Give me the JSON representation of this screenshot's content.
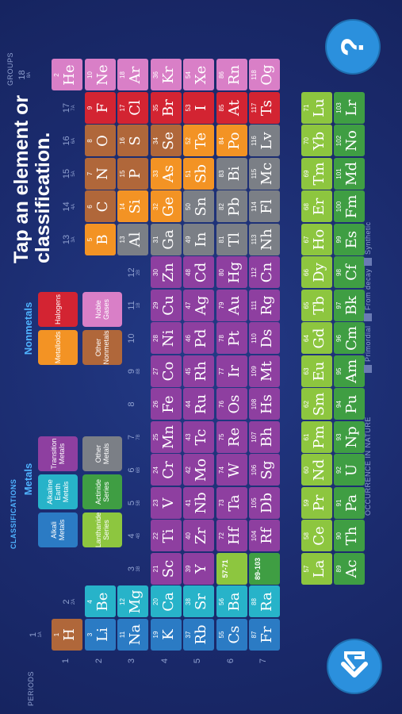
{
  "title": "Tap an element or classification.",
  "groups_label": "GROUPS",
  "periods_label": "PERIODS",
  "help_label": "?",
  "classifications": {
    "title": "CLASSIFICATIONS",
    "metals": {
      "title": "Metals",
      "items": [
        {
          "label": "Alkali Metals",
          "color": "#2b7bc4"
        },
        {
          "label": "Alkaline Earth Metals",
          "color": "#27b3c9"
        },
        {
          "label": "Transition Metals",
          "color": "#8e3fa0"
        },
        {
          "label": "Lanthanide Series",
          "color": "#8dc63f"
        },
        {
          "label": "Actinide Series",
          "color": "#3f9e43"
        },
        {
          "label": "Other Metals",
          "color": "#7b7f86"
        }
      ]
    },
    "nonmetals": {
      "title": "Nonmetals",
      "items": [
        {
          "label": "Metalloids",
          "color": "#f39324"
        },
        {
          "label": "Halogens",
          "color": "#d32432"
        },
        {
          "label": "Other Nonmetals",
          "color": "#b0673a"
        },
        {
          "label": "Noble Gases",
          "color": "#d97fc7"
        }
      ]
    }
  },
  "groups": [
    {
      "number": 1,
      "sub": "1A"
    },
    {
      "number": 2,
      "sub": "2A"
    },
    {
      "number": 3,
      "sub": "3B"
    },
    {
      "number": 4,
      "sub": "4B"
    },
    {
      "number": 5,
      "sub": "5B"
    },
    {
      "number": 6,
      "sub": "6B"
    },
    {
      "number": 7,
      "sub": "7B"
    },
    {
      "number": 8
    },
    {
      "number": 9,
      "sub": "8B"
    },
    {
      "number": 10
    },
    {
      "number": 11,
      "sub": "1B"
    },
    {
      "number": 12,
      "sub": "2B"
    },
    {
      "number": 13,
      "sub": "3A"
    },
    {
      "number": 14,
      "sub": "4A"
    },
    {
      "number": 15,
      "sub": "5A"
    },
    {
      "number": 16,
      "sub": "6A"
    },
    {
      "number": 17,
      "sub": "7A"
    },
    {
      "number": 18,
      "sub": "8A"
    }
  ],
  "periods": [
    1,
    2,
    3,
    4,
    5,
    6,
    7
  ],
  "table": {
    "rows": [
      [
        {
          "number": 1,
          "symbol": "H",
          "color": "#b0673a"
        },
        null,
        null,
        null,
        null,
        null,
        null,
        null,
        null,
        null,
        null,
        null,
        null,
        null,
        null,
        null,
        null,
        {
          "number": 2,
          "symbol": "He",
          "color": "#d97fc7"
        }
      ],
      [
        {
          "number": 3,
          "symbol": "Li",
          "color": "#2b7bc4"
        },
        {
          "number": 4,
          "symbol": "Be",
          "color": "#27b3c9"
        },
        null,
        null,
        null,
        null,
        null,
        null,
        null,
        null,
        null,
        null,
        {
          "number": 5,
          "symbol": "B",
          "color": "#f39324"
        },
        {
          "number": 6,
          "symbol": "C",
          "color": "#b0673a"
        },
        {
          "number": 7,
          "symbol": "N",
          "color": "#b0673a"
        },
        {
          "number": 8,
          "symbol": "O",
          "color": "#b0673a"
        },
        {
          "number": 9,
          "symbol": "F",
          "color": "#d32432"
        },
        {
          "number": 10,
          "symbol": "Ne",
          "color": "#d97fc7"
        }
      ],
      [
        {
          "number": 11,
          "symbol": "Na",
          "color": "#2b7bc4"
        },
        {
          "number": 12,
          "symbol": "Mg",
          "color": "#27b3c9"
        },
        null,
        null,
        null,
        null,
        null,
        null,
        null,
        null,
        null,
        null,
        {
          "number": 13,
          "symbol": "Al",
          "color": "#7b7f86"
        },
        {
          "number": 14,
          "symbol": "Si",
          "color": "#f39324"
        },
        {
          "number": 15,
          "symbol": "P",
          "color": "#b0673a"
        },
        {
          "number": 16,
          "symbol": "S",
          "color": "#b0673a"
        },
        {
          "number": 17,
          "symbol": "Cl",
          "color": "#d32432"
        },
        {
          "number": 18,
          "symbol": "Ar",
          "color": "#d97fc7"
        }
      ],
      [
        {
          "number": 19,
          "symbol": "K",
          "color": "#2b7bc4"
        },
        {
          "number": 20,
          "symbol": "Ca",
          "color": "#27b3c9"
        },
        {
          "number": 21,
          "symbol": "Sc",
          "color": "#8e3fa0"
        },
        {
          "number": 22,
          "symbol": "Ti",
          "color": "#8e3fa0"
        },
        {
          "number": 23,
          "symbol": "V",
          "color": "#8e3fa0"
        },
        {
          "number": 24,
          "symbol": "Cr",
          "color": "#8e3fa0"
        },
        {
          "number": 25,
          "symbol": "Mn",
          "color": "#8e3fa0"
        },
        {
          "number": 26,
          "symbol": "Fe",
          "color": "#8e3fa0"
        },
        {
          "number": 27,
          "symbol": "Co",
          "color": "#8e3fa0"
        },
        {
          "number": 28,
          "symbol": "Ni",
          "color": "#8e3fa0"
        },
        {
          "number": 29,
          "symbol": "Cu",
          "color": "#8e3fa0"
        },
        {
          "number": 30,
          "symbol": "Zn",
          "color": "#8e3fa0"
        },
        {
          "number": 31,
          "symbol": "Ga",
          "color": "#7b7f86"
        },
        {
          "number": 32,
          "symbol": "Ge",
          "color": "#f39324"
        },
        {
          "number": 33,
          "symbol": "As",
          "color": "#f39324"
        },
        {
          "number": 34,
          "symbol": "Se",
          "color": "#b0673a"
        },
        {
          "number": 35,
          "symbol": "Br",
          "color": "#d32432"
        },
        {
          "number": 36,
          "symbol": "Kr",
          "color": "#d97fc7"
        }
      ],
      [
        {
          "number": 37,
          "symbol": "Rb",
          "color": "#2b7bc4"
        },
        {
          "number": 38,
          "symbol": "Sr",
          "color": "#27b3c9"
        },
        {
          "number": 39,
          "symbol": "Y",
          "color": "#8e3fa0"
        },
        {
          "number": 40,
          "symbol": "Zr",
          "color": "#8e3fa0"
        },
        {
          "number": 41,
          "symbol": "Nb",
          "color": "#8e3fa0"
        },
        {
          "number": 42,
          "symbol": "Mo",
          "color": "#8e3fa0"
        },
        {
          "number": 43,
          "symbol": "Tc",
          "color": "#8e3fa0"
        },
        {
          "number": 44,
          "symbol": "Ru",
          "color": "#8e3fa0"
        },
        {
          "number": 45,
          "symbol": "Rh",
          "color": "#8e3fa0"
        },
        {
          "number": 46,
          "symbol": "Pd",
          "color": "#8e3fa0"
        },
        {
          "number": 47,
          "symbol": "Ag",
          "color": "#8e3fa0"
        },
        {
          "number": 48,
          "symbol": "Cd",
          "color": "#8e3fa0"
        },
        {
          "number": 49,
          "symbol": "In",
          "color": "#7b7f86"
        },
        {
          "number": 50,
          "symbol": "Sn",
          "color": "#7b7f86"
        },
        {
          "number": 51,
          "symbol": "Sb",
          "color": "#f39324"
        },
        {
          "number": 52,
          "symbol": "Te",
          "color": "#f39324"
        },
        {
          "number": 53,
          "symbol": "I",
          "color": "#d32432"
        },
        {
          "number": 54,
          "symbol": "Xe",
          "color": "#d97fc7"
        }
      ],
      [
        {
          "number": 55,
          "symbol": "Cs",
          "color": "#2b7bc4"
        },
        {
          "number": 56,
          "symbol": "Ba",
          "color": "#27b3c9"
        },
        {
          "label": "57-71",
          "color": "#8dc63f"
        },
        {
          "number": 72,
          "symbol": "Hf",
          "color": "#8e3fa0"
        },
        {
          "number": 73,
          "symbol": "Ta",
          "color": "#8e3fa0"
        },
        {
          "number": 74,
          "symbol": "W",
          "color": "#8e3fa0"
        },
        {
          "number": 75,
          "symbol": "Re",
          "color": "#8e3fa0"
        },
        {
          "number": 76,
          "symbol": "Os",
          "color": "#8e3fa0"
        },
        {
          "number": 77,
          "symbol": "Ir",
          "color": "#8e3fa0"
        },
        {
          "number": 78,
          "symbol": "Pt",
          "color": "#8e3fa0"
        },
        {
          "number": 79,
          "symbol": "Au",
          "color": "#8e3fa0"
        },
        {
          "number": 80,
          "symbol": "Hg",
          "color": "#8e3fa0"
        },
        {
          "number": 81,
          "symbol": "Tl",
          "color": "#7b7f86"
        },
        {
          "number": 82,
          "symbol": "Pb",
          "color": "#7b7f86"
        },
        {
          "number": 83,
          "symbol": "Bi",
          "color": "#7b7f86"
        },
        {
          "number": 84,
          "symbol": "Po",
          "color": "#f39324"
        },
        {
          "number": 85,
          "symbol": "At",
          "color": "#d32432"
        },
        {
          "number": 86,
          "symbol": "Rn",
          "color": "#d97fc7"
        }
      ],
      [
        {
          "number": 87,
          "symbol": "Fr",
          "color": "#2b7bc4"
        },
        {
          "number": 88,
          "symbol": "Ra",
          "color": "#27b3c9"
        },
        {
          "label": "89-103",
          "color": "#3f9e43"
        },
        {
          "number": 104,
          "symbol": "Rf",
          "color": "#8e3fa0"
        },
        {
          "number": 105,
          "symbol": "Db",
          "color": "#8e3fa0"
        },
        {
          "number": 106,
          "symbol": "Sg",
          "color": "#8e3fa0"
        },
        {
          "number": 107,
          "symbol": "Bh",
          "color": "#8e3fa0"
        },
        {
          "number": 108,
          "symbol": "Hs",
          "color": "#8e3fa0"
        },
        {
          "number": 109,
          "symbol": "Mt",
          "color": "#8e3fa0"
        },
        {
          "number": 110,
          "symbol": "Ds",
          "color": "#8e3fa0"
        },
        {
          "number": 111,
          "symbol": "Rg",
          "color": "#8e3fa0"
        },
        {
          "number": 112,
          "symbol": "Cn",
          "color": "#8e3fa0"
        },
        {
          "number": 113,
          "symbol": "Nh",
          "color": "#7b7f86"
        },
        {
          "number": 114,
          "symbol": "Fl",
          "color": "#7b7f86"
        },
        {
          "number": 115,
          "symbol": "Mc",
          "color": "#7b7f86"
        },
        {
          "number": 116,
          "symbol": "Lv",
          "color": "#7b7f86"
        },
        {
          "number": 117,
          "symbol": "Ts",
          "color": "#d32432"
        },
        {
          "number": 118,
          "symbol": "Og",
          "color": "#d97fc7"
        }
      ]
    ]
  },
  "lanthanides": [
    {
      "number": 57,
      "symbol": "La",
      "color": "#8dc63f"
    },
    {
      "number": 58,
      "symbol": "Ce",
      "color": "#8dc63f"
    },
    {
      "number": 59,
      "symbol": "Pr",
      "color": "#8dc63f"
    },
    {
      "number": 60,
      "symbol": "Nd",
      "color": "#8dc63f"
    },
    {
      "number": 61,
      "symbol": "Pm",
      "color": "#8dc63f"
    },
    {
      "number": 62,
      "symbol": "Sm",
      "color": "#8dc63f"
    },
    {
      "number": 63,
      "symbol": "Eu",
      "color": "#8dc63f"
    },
    {
      "number": 64,
      "symbol": "Gd",
      "color": "#8dc63f"
    },
    {
      "number": 65,
      "symbol": "Tb",
      "color": "#8dc63f"
    },
    {
      "number": 66,
      "symbol": "Dy",
      "color": "#8dc63f"
    },
    {
      "number": 67,
      "symbol": "Ho",
      "color": "#8dc63f"
    },
    {
      "number": 68,
      "symbol": "Er",
      "color": "#8dc63f"
    },
    {
      "number": 69,
      "symbol": "Tm",
      "color": "#8dc63f"
    },
    {
      "number": 70,
      "symbol": "Yb",
      "color": "#8dc63f"
    },
    {
      "number": 71,
      "symbol": "Lu",
      "color": "#8dc63f"
    }
  ],
  "actinides": [
    {
      "number": 89,
      "symbol": "Ac",
      "color": "#3f9e43"
    },
    {
      "number": 90,
      "symbol": "Th",
      "color": "#3f9e43"
    },
    {
      "number": 91,
      "symbol": "Pa",
      "color": "#3f9e43"
    },
    {
      "number": 92,
      "symbol": "U",
      "color": "#3f9e43"
    },
    {
      "number": 93,
      "symbol": "Np",
      "color": "#3f9e43"
    },
    {
      "number": 94,
      "symbol": "Pu",
      "color": "#3f9e43"
    },
    {
      "number": 95,
      "symbol": "Am",
      "color": "#3f9e43"
    },
    {
      "number": 96,
      "symbol": "Cm",
      "color": "#3f9e43"
    },
    {
      "number": 97,
      "symbol": "Bk",
      "color": "#3f9e43"
    },
    {
      "number": 98,
      "symbol": "Cf",
      "color": "#3f9e43"
    },
    {
      "number": 99,
      "symbol": "Es",
      "color": "#3f9e43"
    },
    {
      "number": 100,
      "symbol": "Fm",
      "color": "#3f9e43"
    },
    {
      "number": 101,
      "symbol": "Md",
      "color": "#3f9e43"
    },
    {
      "number": 102,
      "symbol": "No",
      "color": "#3f9e43"
    },
    {
      "number": 103,
      "symbol": "Lr",
      "color": "#3f9e43"
    }
  ],
  "occurrence": {
    "title": "OCCURRENCE IN NATURE",
    "items": [
      "Primordial",
      "From decay",
      "Synthetic"
    ]
  }
}
